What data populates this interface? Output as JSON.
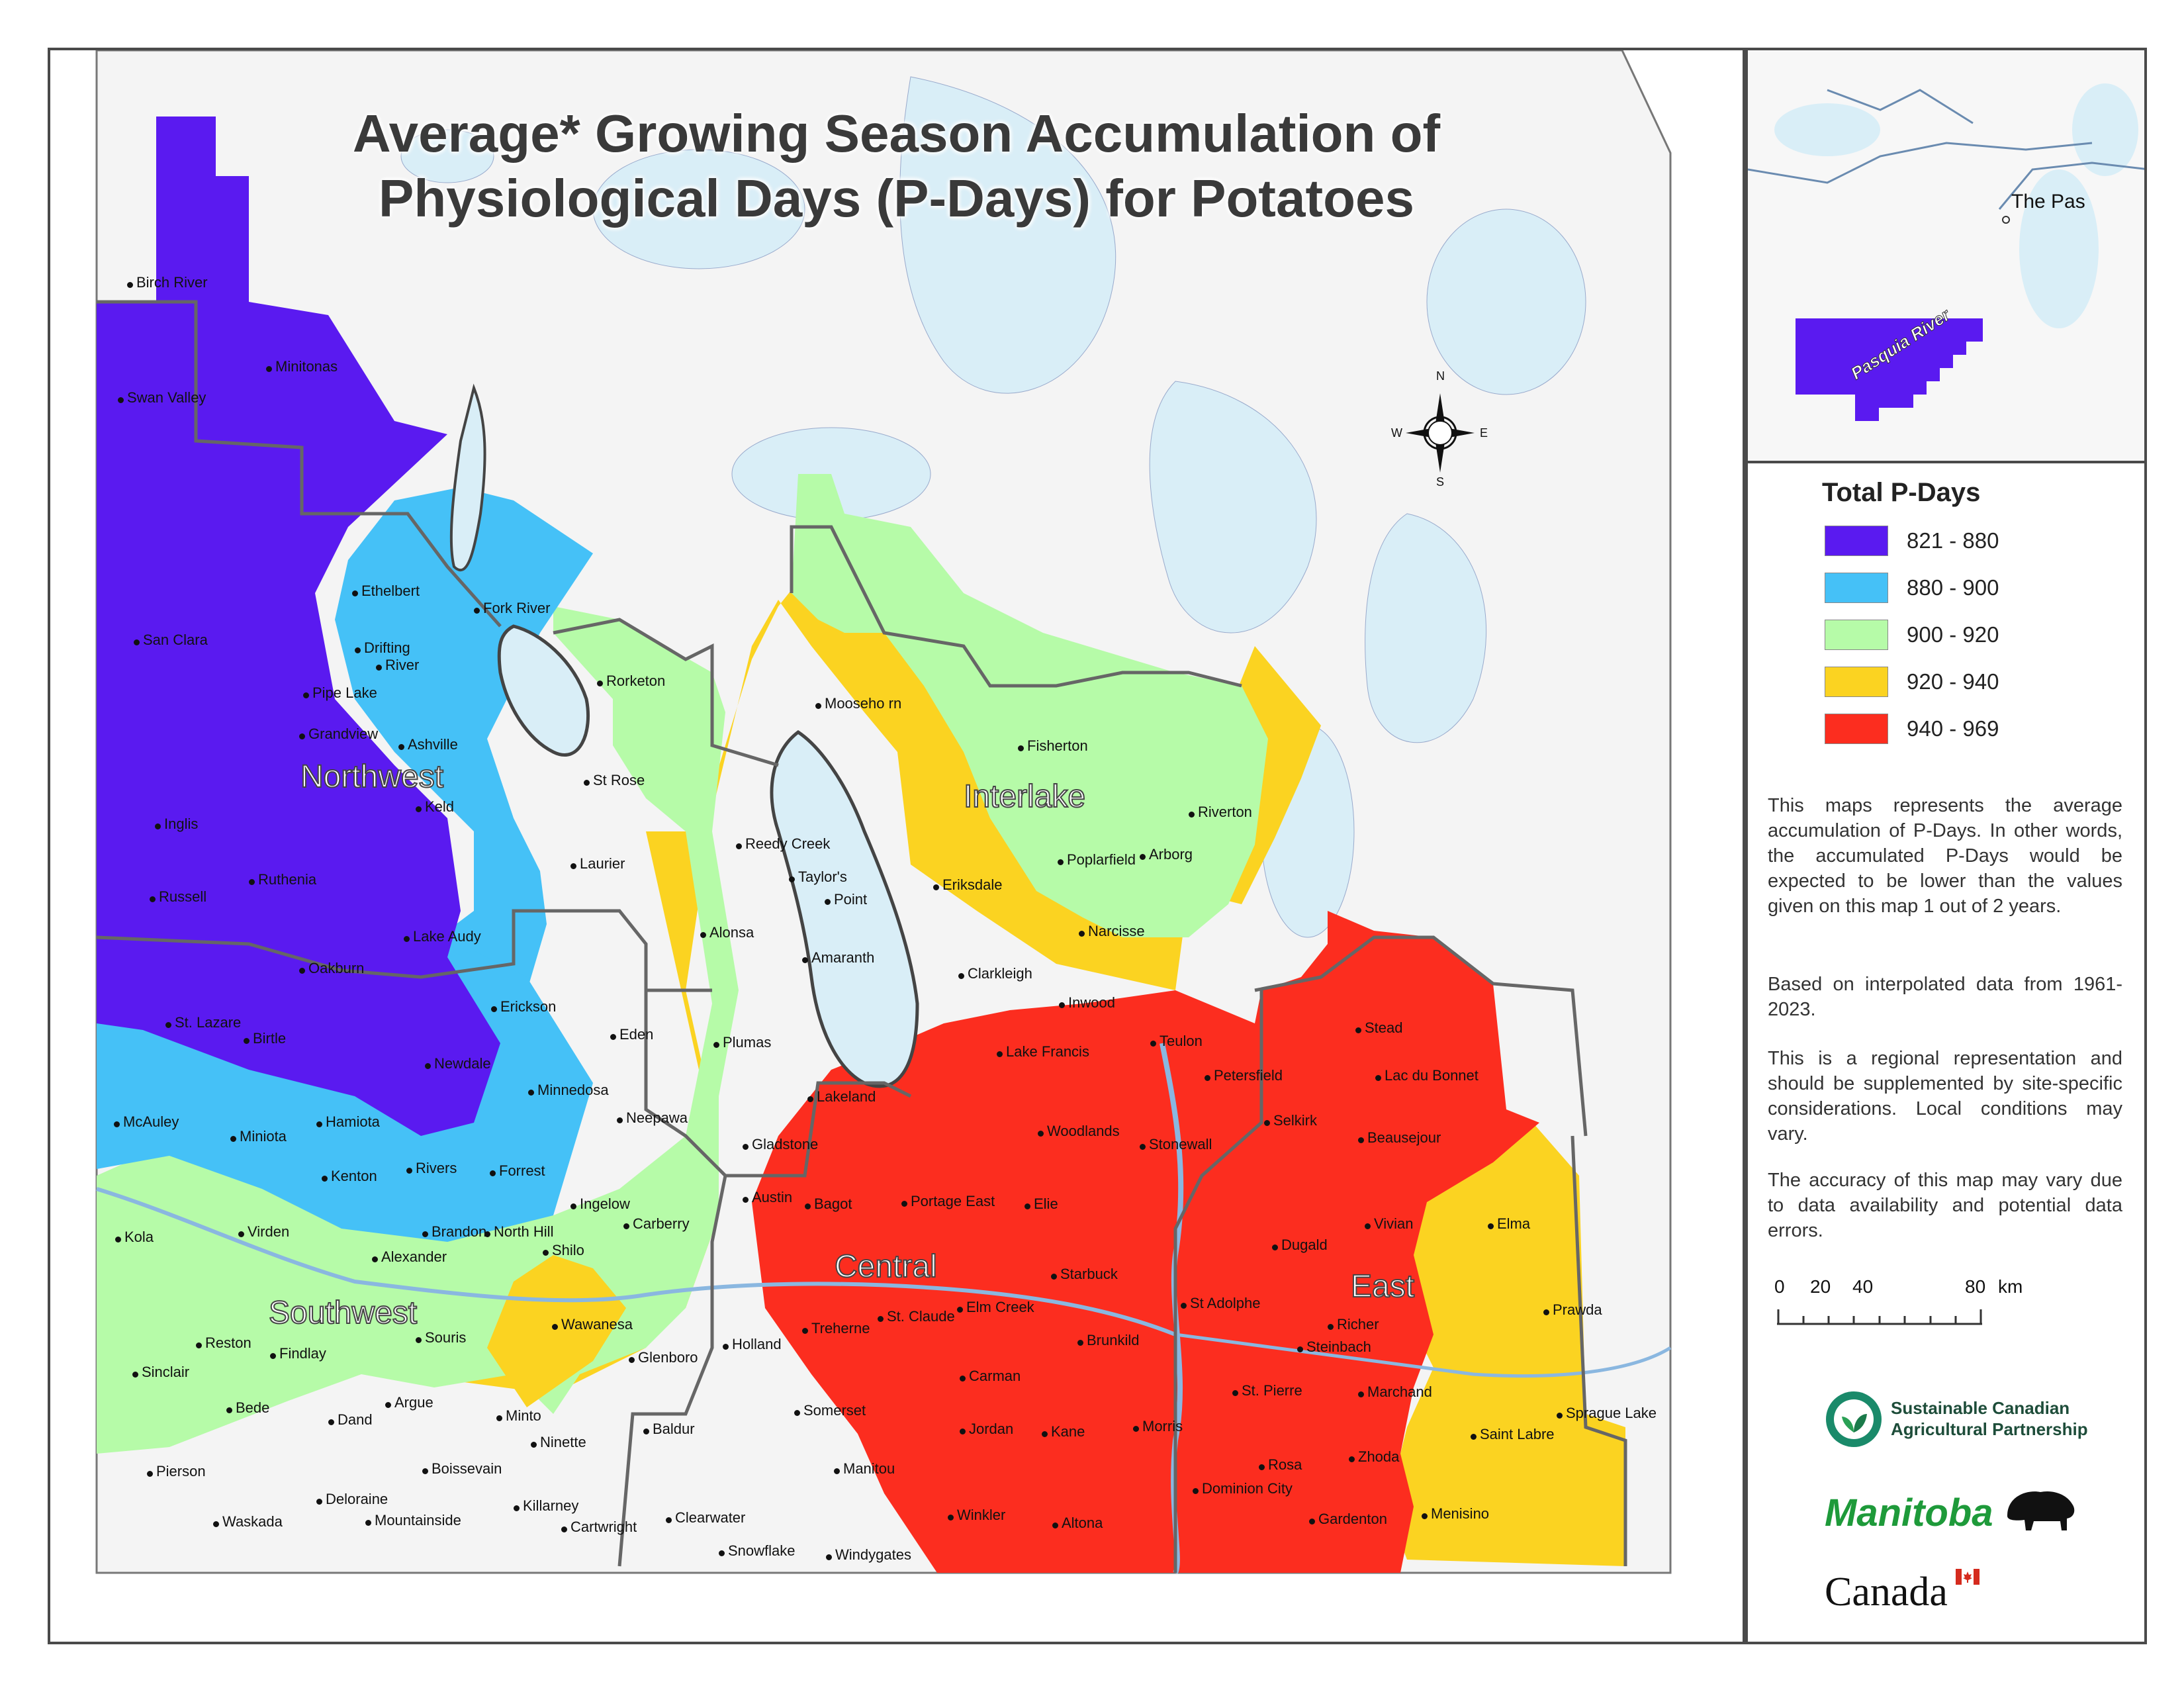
{
  "title": {
    "line1": "Average* Growing Season Accumulation of",
    "line2": "Physiological Days (P-Days) for Potatoes"
  },
  "compass": {
    "n": "N",
    "s": "S",
    "e": "E",
    "w": "W"
  },
  "regions": [
    "Northwest",
    "Interlake",
    "Central",
    "Southwest",
    "East"
  ],
  "places": [
    "Birch River",
    "Minitonas",
    "Swan Valley",
    "Ethelbert",
    "Fork River",
    "San Clara",
    "Drifting",
    "River",
    "Pipe Lake",
    "Grandview",
    "Ashville",
    "Rorketon",
    "St Rose",
    "Keld",
    "Inglis",
    "Russell",
    "Ruthenia",
    "Laurier",
    "Lake Audy",
    "Oakburn",
    "Erickson",
    "St. Lazare",
    "Birtle",
    "Newdale",
    "Minnedosa",
    "McAuley",
    "Miniota",
    "Hamiota",
    "Kenton",
    "Rivers",
    "Forrest",
    "Neepawa",
    "Eden",
    "Plumas",
    "Alonsa",
    "Amaranth",
    "Reedy Creek",
    "Taylor's",
    "Point",
    "Mooseho rn",
    "Fisherton",
    "Eriksdale",
    "Poplarfield",
    "Arborg",
    "Riverton",
    "Narcisse",
    "Clarkleigh",
    "Inwood",
    "Lake Francis",
    "Teulon",
    "Stead",
    "Petersfield",
    "Lac du Bonnet",
    "Lakeland",
    "Selkirk",
    "Woodlands",
    "Stonewall",
    "Beausejour",
    "Gladstone",
    "Austin",
    "Bagot",
    "Portage East",
    "Elie",
    "Vivian",
    "Elma",
    "Kola",
    "Virden",
    "Brandon",
    "North Hill",
    "Ingelow",
    "Carberry",
    "Shilo",
    "Alexander",
    "Dugald",
    "Starbuck",
    "St Adolphe",
    "Prawda",
    "Souris",
    "Wawanesa",
    "Holland",
    "Treherne",
    "St. Claude",
    "Elm Creek",
    "Brunkild",
    "Richer",
    "Steinbach",
    "Reston",
    "Findlay",
    "Sinclair",
    "Glenboro",
    "Carman",
    "St. Pierre",
    "Marchand",
    "Bede",
    "Dand",
    "Argue",
    "Minto",
    "Somerset",
    "Jordan",
    "Kane",
    "Morris",
    "Sprague Lake",
    "Saint Labre",
    "Ninette",
    "Baldur",
    "Rosa",
    "Zhoda",
    "Pierson",
    "Boissevain",
    "Manitou",
    "Dominion City",
    "Deloraine",
    "Killarney",
    "Winkler",
    "Altona",
    "Gardenton",
    "Menisino",
    "Waskada",
    "Mountainside",
    "Cartwright",
    "Clearwater",
    "Snowflake",
    "Windygates"
  ],
  "inset": {
    "place": "The Pas",
    "river": "Pasquia River"
  },
  "legend": {
    "title": "Total P-Days",
    "items": [
      {
        "label": "821 - 880",
        "color": "#5a1af0"
      },
      {
        "label": "880 - 900",
        "color": "#45c1f7"
      },
      {
        "label": "900 - 920",
        "color": "#b6fba8"
      },
      {
        "label": "920 - 940",
        "color": "#fbd321"
      },
      {
        "label": "940 - 969",
        "color": "#fc2d1f"
      }
    ]
  },
  "notes": [
    "This maps represents the average accumulation of P-Days. In other words, the accumulated P-Days would be expected to be lower than the values given on this map 1 out of 2 years.",
    "Based on interpolated data from 1961-2023.",
    "This is a regional representation and should be supplemented by site-specific considerations. Local conditions may vary.",
    "The accuracy of this map may vary due to data availability and potential data errors."
  ],
  "scale": {
    "ticks": [
      "0",
      "20",
      "40",
      "80"
    ],
    "unit": "km"
  },
  "logos": {
    "scap_line1": "Sustainable Canadian",
    "scap_line2": "Agricultural Partnership",
    "manitoba": "Manitoba",
    "canada": "Canada"
  }
}
